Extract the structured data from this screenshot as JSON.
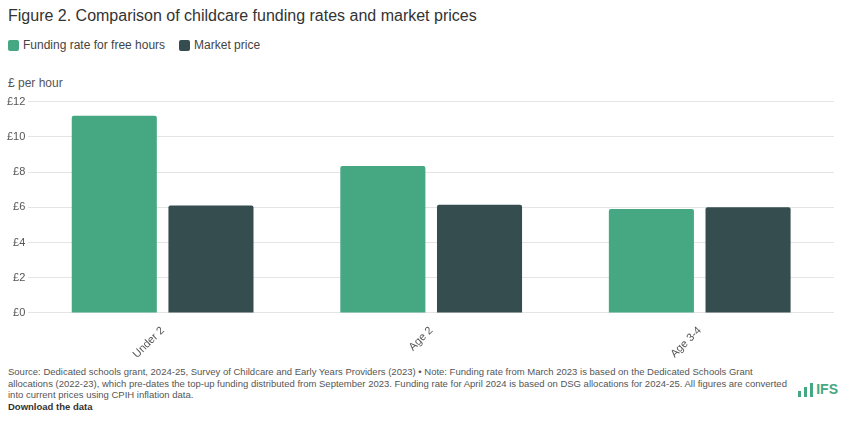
{
  "chart_data": {
    "type": "bar",
    "title": "Figure 2. Comparison of childcare funding rates and market prices",
    "y_label": "£ per hour",
    "categories": [
      "Under 2",
      "Age 2",
      "Age 3-4"
    ],
    "series": [
      {
        "name": "Funding rate for free hours",
        "color": "#46a882",
        "values": [
          11.2,
          8.35,
          5.9
        ]
      },
      {
        "name": "Market price",
        "color": "#354d4f",
        "values": [
          6.1,
          6.15,
          6.0
        ]
      }
    ],
    "ylim": [
      0,
      12
    ],
    "yticks": [
      {
        "value": 0,
        "label": "£0"
      },
      {
        "value": 2,
        "label": "£2"
      },
      {
        "value": 4,
        "label": "£4"
      },
      {
        "value": 6,
        "label": "£6"
      },
      {
        "value": 8,
        "label": "£8"
      },
      {
        "value": 10,
        "label": "£10"
      },
      {
        "value": 12,
        "label": "£12"
      }
    ],
    "grid": true,
    "legend": "top-left",
    "source": "Source: Dedicated schools grant, 2024-25, Survey of Childcare and Early Years Providers (2023) • Note: Funding rate from March 2023 is based on the Dedicated Schools Grant allocations (2022-23), which pre-dates the top-up funding distributed from September 2023. Funding rate for April 2024 is based on DSG allocations for 2024-25. All figures are converted into current prices using CPIH inflation data.",
    "download_link": "Download the data",
    "logo": "IFS"
  }
}
